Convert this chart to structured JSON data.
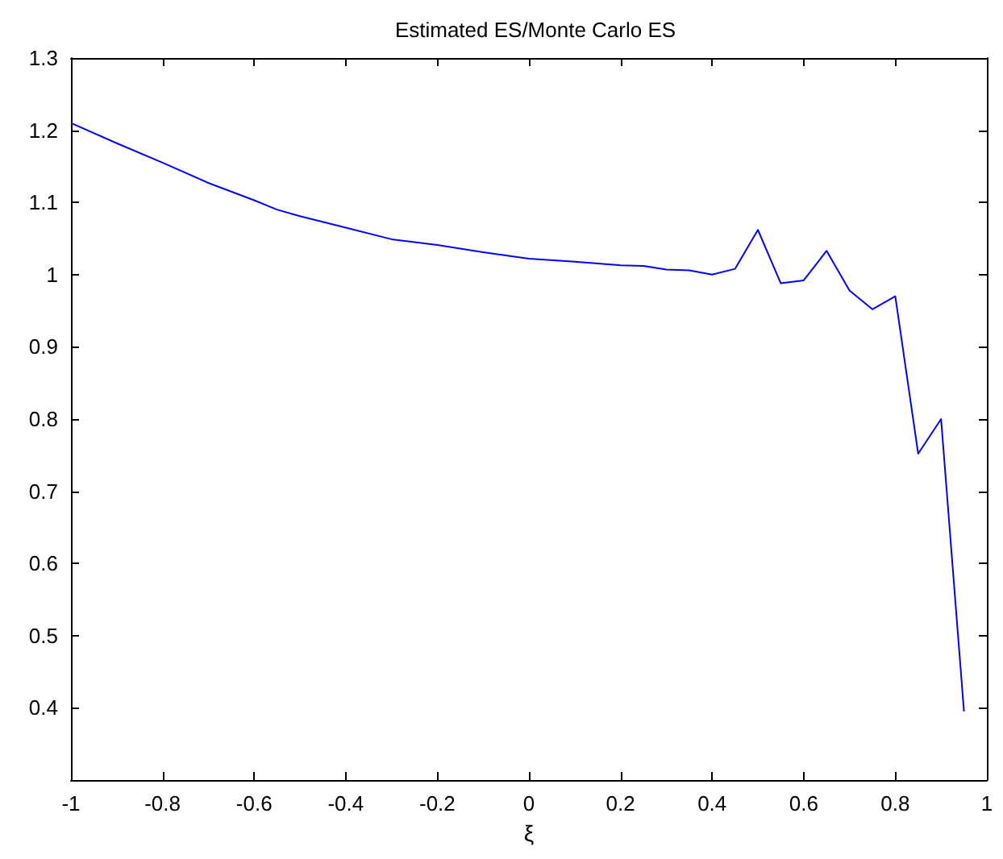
{
  "chart_data": {
    "type": "line",
    "title": "Estimated ES/Monte Carlo ES",
    "xlabel": "ξ",
    "x": [
      -1,
      -0.9,
      -0.8,
      -0.7,
      -0.6,
      -0.55,
      -0.5,
      -0.4,
      -0.3,
      -0.2,
      -0.1,
      0,
      0.1,
      0.2,
      0.25,
      0.3,
      0.35,
      0.4,
      0.45,
      0.5,
      0.55,
      0.6,
      0.65,
      0.7,
      0.75,
      0.8,
      0.85,
      0.9,
      0.95
    ],
    "series": [
      {
        "color": "#0000ff",
        "values": [
          1.21,
          1.182,
          1.155,
          1.127,
          1.103,
          1.09,
          1.081,
          1.065,
          1.049,
          1.041,
          1.031,
          1.022,
          1.018,
          1.013,
          1.012,
          1.007,
          1.006,
          1.0,
          1.008,
          1.062,
          0.988,
          0.992,
          1.033,
          0.978,
          0.952,
          0.97,
          0.752,
          0.8,
          0.395
        ]
      }
    ],
    "xlim": [
      -1,
      1
    ],
    "xticks": [
      -1,
      -0.8,
      -0.6,
      -0.4,
      -0.2,
      0,
      0.2,
      0.4,
      0.6,
      0.8,
      1
    ],
    "ylim": [
      0.3,
      1.3
    ],
    "yticks": [
      0.4,
      0.5,
      0.6,
      0.7,
      0.8,
      0.9,
      1,
      1.1,
      1.2,
      1.3
    ],
    "grid": false,
    "marker": "none",
    "line_style": "solid"
  }
}
